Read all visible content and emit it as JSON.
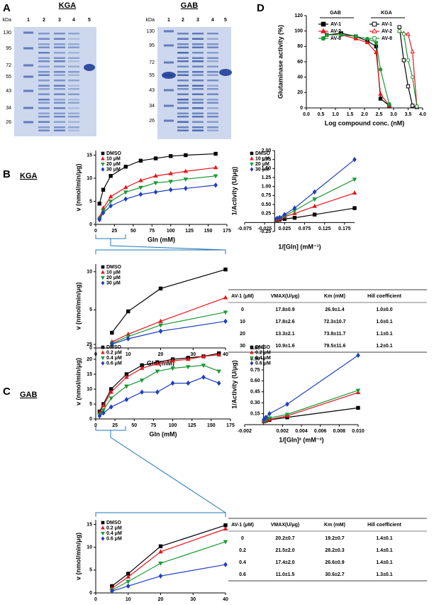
{
  "panel_labels": [
    "A",
    "B",
    "C",
    "D"
  ],
  "section_labels": [
    "KGA",
    "GAB"
  ],
  "gels": [
    {
      "title": "KGA",
      "unit": "kDa",
      "lanes": [
        "1",
        "2",
        "3",
        "4",
        "5"
      ],
      "markers": [
        130,
        95,
        72,
        55,
        43,
        34,
        26
      ]
    },
    {
      "title": "GAB",
      "unit": "kDa",
      "lanes": [
        "1",
        "2",
        "3",
        "4",
        "5"
      ],
      "markers": [
        130,
        95,
        72,
        55,
        43,
        34,
        26
      ]
    }
  ],
  "tables": [
    {
      "header": [
        "AV-1 (μM)",
        "VMAX(U/μg)",
        "Km (mM)",
        "Hill coefficient"
      ],
      "rows": [
        [
          "0",
          "17.8±0.9",
          "26.9±1.4",
          "1.0±0.0"
        ],
        [
          "10",
          "17.8±2.6",
          "72.3±10.7",
          "1.0±0.1"
        ],
        [
          "20",
          "13.3±2.1",
          "73.8±11.7",
          "1.1±0.1"
        ],
        [
          "30",
          "10.9±1.6",
          "79.5±11.6",
          "1.2±0.1"
        ]
      ]
    },
    {
      "header": [
        "AV-1 (μM)",
        "VMAX(U/μg)",
        "Km (mM)",
        "Hill coefficient"
      ],
      "rows": [
        [
          "0",
          "20.2±0.7",
          "19.2±0.7",
          "1.4±0.1"
        ],
        [
          "0.2",
          "21.5±2.0",
          "28.2±0.3",
          "1.4±0.1"
        ],
        [
          "0.4",
          "17.4±2.0",
          "26.6±0.9",
          "1.4±0.1"
        ],
        [
          "0.6",
          "11.0±1.5",
          "30.6±2.7",
          "1.3±0.1"
        ]
      ]
    }
  ],
  "chart_data": [
    {
      "type": "scatter",
      "x_label": "Log compound conc. (nM)",
      "y_label": "Glutaminase activity (%)",
      "xlim": [
        0,
        4
      ],
      "ylim": [
        0,
        120
      ],
      "xticks": [
        {
          "value": 0,
          "label": "0.0"
        },
        0.5,
        {
          "value": 1,
          "label": "1.0"
        },
        1.5,
        {
          "value": 2,
          "label": "2.0"
        },
        2.5,
        {
          "value": 3,
          "label": "3.0"
        },
        3.5,
        {
          "value": 4,
          "label": "4.0"
        }
      ],
      "yticks": [
        0,
        20,
        40,
        60,
        80,
        100,
        120
      ],
      "legend": "upper right",
      "legend_groups": [
        "GAB",
        "KGA"
      ],
      "series": [
        {
          "name": "AV-1",
          "group": 0,
          "color": "#000000",
          "marker": "square",
          "filled": true,
          "x": [
            0.7,
            1.2,
            1.7,
            2.1,
            2.4,
            2.55,
            2.85
          ],
          "values": [
            95,
            97,
            93,
            87,
            80,
            12,
            3
          ]
        },
        {
          "name": "AV-2",
          "group": 0,
          "color": "#e8141c",
          "marker": "triangle",
          "filled": true,
          "x": [
            0.7,
            1.2,
            1.7,
            2.1,
            2.4,
            2.55,
            2.85
          ],
          "values": [
            95,
            95,
            90,
            85,
            72,
            18,
            3
          ]
        },
        {
          "name": "AV-8",
          "group": 0,
          "color": "#1a9a35",
          "marker": "circle",
          "filled": true,
          "x": [
            0.7,
            1.2,
            1.7,
            2.1,
            2.4,
            2.55,
            2.85
          ],
          "values": [
            95,
            95,
            93,
            90,
            85,
            50,
            5
          ]
        },
        {
          "name": "AV-1",
          "group": 1,
          "color": "#000000",
          "marker": "square",
          "filled": false,
          "x": [
            3.2,
            3.35,
            3.5,
            3.65,
            3.8
          ],
          "values": [
            105,
            62,
            28,
            3,
            1
          ]
        },
        {
          "name": "AV-2",
          "group": 1,
          "color": "#e8141c",
          "marker": "triangle",
          "filled": false,
          "x": [
            3.2,
            3.35,
            3.5,
            3.65,
            3.8
          ],
          "values": [
            100,
            97,
            96,
            73,
            3
          ]
        },
        {
          "name": "AV-8",
          "group": 1,
          "color": "#1a9a35",
          "marker": "circle",
          "filled": false,
          "x": [
            3.2,
            3.35,
            3.5,
            3.65,
            3.8
          ],
          "values": [
            100,
            96,
            62,
            40,
            2
          ]
        }
      ]
    },
    {
      "type": "scatter",
      "x_label": "Gln (mM)",
      "y_label": "v (nmol/min/μg)",
      "xlim": [
        0,
        175
      ],
      "ylim": [
        0,
        16
      ],
      "xticks": [
        0,
        25,
        50,
        75,
        100,
        125,
        150,
        175
      ],
      "yticks": [
        0,
        5,
        10,
        15
      ],
      "legend": "upper left",
      "x": [
        5,
        10,
        20,
        40,
        60,
        80,
        100,
        120,
        160
      ],
      "series": [
        {
          "name": "DMSO",
          "color": "#000000",
          "marker": "square",
          "filled": true,
          "values": [
            4.5,
            7.5,
            10.5,
            12.5,
            13.8,
            14.3,
            14.8,
            15.0,
            15.3
          ]
        },
        {
          "name": "10 μM",
          "color": "#e8141c",
          "marker": "triangle",
          "filled": true,
          "values": [
            1.5,
            3.5,
            6,
            8,
            9.5,
            10.5,
            11,
            11.5,
            12.3
          ]
        },
        {
          "name": "20 μM",
          "color": "#1a9a35",
          "marker": "triangle-down",
          "filled": true,
          "values": [
            1.2,
            3,
            5,
            7,
            8,
            9,
            9.3,
            9.8,
            10.5
          ]
        },
        {
          "name": "30 μM",
          "color": "#1f3fbf",
          "marker": "diamond",
          "filled": true,
          "values": [
            1,
            2.5,
            4,
            5.5,
            6.5,
            7,
            7.5,
            7.8,
            8.5
          ]
        }
      ]
    },
    {
      "type": "scatter",
      "x_label": "1/[Gln] (mM⁻¹)",
      "y_label": "1/Activity (U/μg)",
      "xlim": [
        -0.075,
        0.2
      ],
      "ylim": [
        -0.25,
        2
      ],
      "xticks": [
        -0.075,
        -0.025,
        0.025,
        0.075,
        0.125,
        0.175
      ],
      "yticks": [
        -0.25,
        0.25,
        {
          "value": 0.5,
          "label": "0.50"
        },
        0.75,
        {
          "value": 1,
          "label": "1.00"
        },
        1.25,
        {
          "value": 1.5,
          "label": "1.50"
        },
        1.75,
        {
          "value": 2,
          "label": "2.00"
        }
      ],
      "legend": "upper left",
      "x": [
        0.00625,
        0.0125,
        0.025,
        0.05,
        0.1,
        0.2
      ],
      "series": [
        {
          "name": "DMSO",
          "color": "#000000",
          "marker": "square",
          "filled": true,
          "values": [
            0.07,
            0.08,
            0.1,
            0.13,
            0.22,
            0.4
          ]
        },
        {
          "name": "10 μM",
          "color": "#e8141c",
          "marker": "triangle",
          "filled": true,
          "values": [
            0.08,
            0.1,
            0.16,
            0.25,
            0.45,
            0.82
          ]
        },
        {
          "name": "20 μM",
          "color": "#1a9a35",
          "marker": "triangle-down",
          "filled": true,
          "values": [
            0.1,
            0.12,
            0.18,
            0.33,
            0.65,
            1.2
          ]
        },
        {
          "name": "30 μM",
          "color": "#1f3fbf",
          "marker": "diamond",
          "filled": true,
          "values": [
            0.12,
            0.14,
            0.22,
            0.4,
            0.85,
            1.75
          ]
        }
      ]
    },
    {
      "type": "scatter",
      "x_label": "Gln (mM)",
      "y_label": "v (nmol/min/μg)",
      "xlim": [
        0,
        40
      ],
      "ylim": [
        0,
        11
      ],
      "xticks": [
        0,
        10,
        20,
        30,
        40
      ],
      "yticks": [
        0,
        5,
        10
      ],
      "legend": "upper left",
      "x": [
        5,
        10,
        20,
        40
      ],
      "series": [
        {
          "name": "DMSO",
          "color": "#000000",
          "marker": "square",
          "filled": true,
          "values": [
            2,
            4.8,
            7.8,
            10.3
          ]
        },
        {
          "name": "10 μM",
          "color": "#e8141c",
          "marker": "triangle",
          "filled": true,
          "values": [
            0.8,
            1.8,
            3.5,
            6.6
          ]
        },
        {
          "name": "20 μM",
          "color": "#1a9a35",
          "marker": "triangle-down",
          "filled": true,
          "values": [
            0.6,
            1.5,
            3,
            4.7
          ]
        },
        {
          "name": "30 μM",
          "color": "#1f3fbf",
          "marker": "diamond",
          "filled": true,
          "values": [
            0.5,
            1.2,
            2.2,
            3.5
          ]
        }
      ]
    },
    {
      "type": "scatter",
      "x_label": "Gln (mM)",
      "y_label": "v (nmol/min/μg)",
      "xlim": [
        0,
        175
      ],
      "ylim": [
        0,
        25
      ],
      "xticks": [
        0,
        25,
        50,
        75,
        100,
        125,
        150,
        175
      ],
      "yticks": [
        0,
        5,
        10,
        15,
        20,
        25
      ],
      "legend": "upper left",
      "x": [
        5,
        10,
        20,
        40,
        60,
        80,
        100,
        120,
        140,
        160
      ],
      "series": [
        {
          "name": "DMSO",
          "color": "#000000",
          "marker": "square",
          "filled": true,
          "values": [
            2.5,
            5,
            10,
            15,
            18,
            19,
            20,
            20.5,
            21,
            22
          ]
        },
        {
          "name": "0.2 μM",
          "color": "#e8141c",
          "marker": "triangle",
          "filled": true,
          "values": [
            2,
            4.5,
            9,
            14,
            17,
            18.5,
            19.5,
            20,
            21,
            21.5
          ]
        },
        {
          "name": "0.4 μM",
          "color": "#1a9a35",
          "marker": "triangle-down",
          "filled": true,
          "values": [
            1.5,
            3,
            7,
            11,
            13,
            16,
            17,
            17.5,
            18,
            16
          ]
        },
        {
          "name": "0.6 μM",
          "color": "#1f3fbf",
          "marker": "diamond",
          "filled": true,
          "values": [
            1,
            2,
            4,
            6.5,
            9,
            9,
            12,
            12,
            14,
            12
          ]
        }
      ]
    },
    {
      "type": "scatter",
      "x_label": "1/[Gln]² (mM⁻²)",
      "y_label": "1/Activity (U/μg)",
      "xlim": [
        -0.002,
        0.01
      ],
      "ylim": [
        0,
        1.1
      ],
      "xticks": [
        -0.002,
        0.002,
        0.004,
        0.006,
        0.008,
        {
          "value": 0.01,
          "label": "0.010"
        }
      ],
      "yticks": [
        0.15,
        {
          "value": 0.3,
          "label": "0.30"
        },
        0.45,
        {
          "value": 0.6,
          "label": "0.60"
        },
        0.75,
        {
          "value": 0.9,
          "label": "0.90"
        },
        1.05
      ],
      "legend": "upper left",
      "x": [
        3.91e-05,
        0.0001,
        0.00025,
        0.000625,
        0.0025,
        0.01
      ],
      "series": [
        {
          "name": "DMSO",
          "color": "#000000",
          "marker": "square",
          "filled": true,
          "values": [
            0.045,
            0.05,
            0.055,
            0.065,
            0.1,
            0.23
          ]
        },
        {
          "name": "0.2 μM",
          "color": "#e8141c",
          "marker": "triangle",
          "filled": true,
          "values": [
            0.046,
            0.05,
            0.06,
            0.07,
            0.12,
            0.44
          ]
        },
        {
          "name": "0.4 μM",
          "color": "#1a9a35",
          "marker": "triangle-down",
          "filled": true,
          "values": [
            0.05,
            0.06,
            0.07,
            0.09,
            0.14,
            0.47
          ]
        },
        {
          "name": "0.6 μM",
          "color": "#1f3fbf",
          "marker": "diamond",
          "filled": true,
          "values": [
            0.07,
            0.08,
            0.1,
            0.15,
            0.28,
            0.95
          ]
        }
      ]
    },
    {
      "type": "scatter",
      "x_label": "Gln (mM)",
      "y_label": "v (nmol/min/μg)",
      "xlim": [
        0,
        40
      ],
      "ylim": [
        0,
        16
      ],
      "xticks": [
        0,
        10,
        20,
        30,
        40
      ],
      "yticks": [
        0,
        5,
        10,
        15
      ],
      "legend": "upper left",
      "x": [
        5,
        10,
        20,
        40
      ],
      "series": [
        {
          "name": "DMSO",
          "color": "#000000",
          "marker": "square",
          "filled": true,
          "values": [
            1.5,
            4.2,
            10.2,
            14.8
          ]
        },
        {
          "name": "0.2 μM",
          "color": "#e8141c",
          "marker": "triangle",
          "filled": true,
          "values": [
            1,
            3.5,
            9,
            14
          ]
        },
        {
          "name": "0.4 μM",
          "color": "#1a9a35",
          "marker": "triangle-down",
          "filled": true,
          "values": [
            0.6,
            2.5,
            6.5,
            11.2
          ]
        },
        {
          "name": "0.6 μM",
          "color": "#1f3fbf",
          "marker": "diamond",
          "filled": true,
          "values": [
            0.4,
            1.5,
            3.7,
            6.2
          ]
        }
      ]
    }
  ]
}
